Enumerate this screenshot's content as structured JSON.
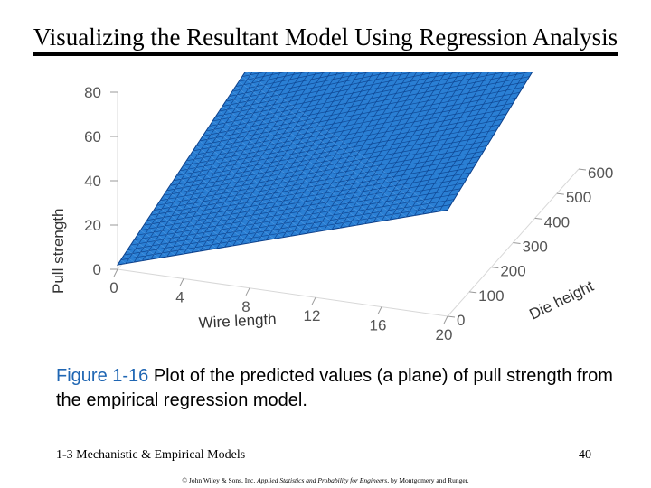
{
  "slide": {
    "title": "Visualizing the Resultant Model Using Regression Analysis",
    "caption_label": "Figure 1-16",
    "caption_text": "  Plot of the predicted values (a plane) of pull strength from the empirical regression model.",
    "footer_left": "1-3 Mechanistic & Empirical Models",
    "page_number": "40",
    "copyright_prefix": "© John Wiley & Sons, Inc.  ",
    "copyright_book": "Applied Statistics and Probability for Engineers",
    "copyright_suffix": ", by Montgomery and Runger."
  },
  "chart_data": {
    "type": "surface",
    "description_of_surface": "",
    "x_axis": {
      "label": "Wire length",
      "range": [
        0,
        20
      ],
      "ticks": [
        "0",
        "4",
        "8",
        "12",
        "16",
        "20"
      ]
    },
    "y_axis": {
      "label": "Die height",
      "range": [
        0,
        600
      ],
      "ticks": [
        "0",
        "100",
        "200",
        "300",
        "400",
        "500",
        "600"
      ]
    },
    "z_axis": {
      "label": "Pull strength",
      "range": [
        0,
        80
      ],
      "ticks": [
        "0",
        "20",
        "40",
        "60",
        "80"
      ]
    },
    "plane": {
      "corners": [
        {
          "x": 0,
          "y": 0,
          "z": 2
        },
        {
          "x": 20,
          "y": 0,
          "z": 48
        },
        {
          "x": 0,
          "y": 600,
          "z": 25
        },
        {
          "x": 20,
          "y": 600,
          "z": 78
        }
      ]
    },
    "surface_color": "#2a7fd4",
    "mesh_color": "#0b3f8a"
  }
}
